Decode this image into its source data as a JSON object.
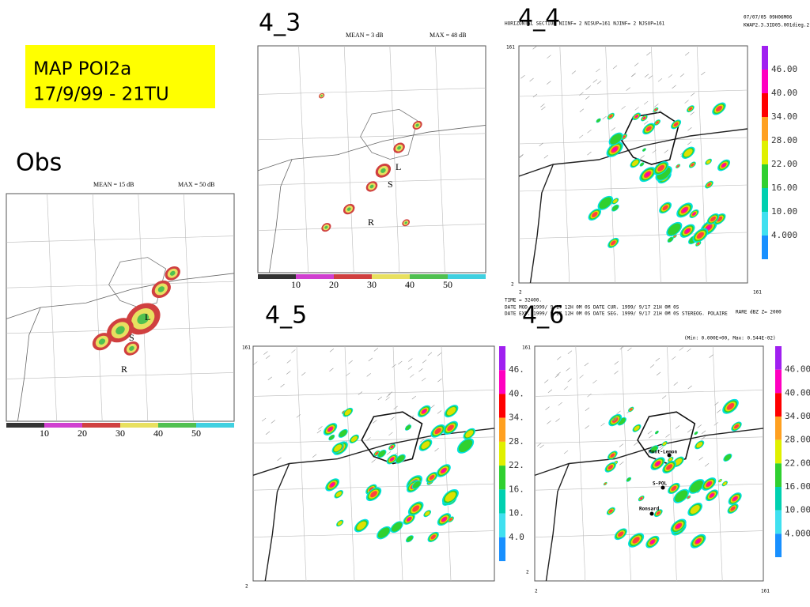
{
  "title": {
    "line1": "MAP POI2a",
    "line2": "17/9/99 - 21TU"
  },
  "obs": {
    "label": "Obs",
    "mean": "MEAN =   15 dB",
    "max": "MAX =   50 dB",
    "scale": [
      "10",
      "20",
      "30",
      "40",
      "50"
    ],
    "places": [
      "L",
      "S",
      "R"
    ]
  },
  "run_4_3": {
    "label": "4_3",
    "mean": "MEAN =    3 dB",
    "max": "MAX =   48 dB",
    "scale": [
      "10",
      "20",
      "30",
      "40",
      "50"
    ],
    "places": [
      "L",
      "S",
      "R"
    ]
  },
  "run_4_4": {
    "label": "4_4",
    "header": "HORIZONTAL SECTION NIINF=  2 NISUP=161 NJINF=  2 NJSUP=161",
    "stamp": "07/07/05    09H06M06",
    "file": "KWAP2.3.3ID05.001dieg.2",
    "scale": [
      "46.00",
      "40.00",
      "34.00",
      "28.00",
      "22.00",
      "16.00",
      "10.00",
      "4.000"
    ],
    "axis": [
      "161",
      "2",
      "2",
      "161"
    ],
    "footer": [
      "TIME =   32400.",
      "DATE MOD. 1999/ 9/17  12H 0M 0S   DATE CUR. 1999/ 9/17  21H 0M 0S",
      "DATE EXP. 1999/ 9/17  12H 0M 0S   DATE SEG. 1999/ 9/17  21H 0M 0S   STEREOG. POLAIRE"
    ],
    "field": "RARE dBZ   Z= 2000"
  },
  "run_4_5": {
    "label": "4_5",
    "scale": [
      "46.",
      "40.",
      "34.",
      "28.",
      "22.",
      "16.",
      "10.",
      "4.0"
    ],
    "axis": [
      "161",
      "2"
    ]
  },
  "run_4_6": {
    "label": "4_6",
    "range": "(Min: 0.000E+00, Max: 0.544E-02)",
    "scale": [
      "46.00",
      "40.00",
      "34.00",
      "28.00",
      "22.00",
      "16.00",
      "10.00",
      "4.000"
    ],
    "axis": [
      "161",
      "2",
      "2",
      "161"
    ],
    "places": [
      "Mont-Lemon",
      "S-POL",
      "Ronsard"
    ]
  }
}
